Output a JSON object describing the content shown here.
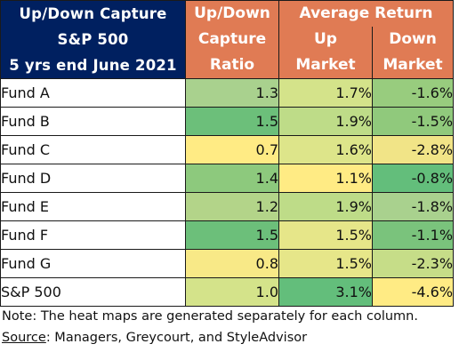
{
  "header": {
    "title_lines": [
      "Up/Down Capture",
      "S&P 500",
      "5 yrs end June 2021"
    ],
    "ratio_lines": [
      "Up/Down",
      "Capture",
      "Ratio"
    ],
    "avg_return": "Average Return",
    "up_lines": [
      "Up",
      "Market"
    ],
    "down_lines": [
      "Down",
      "Market"
    ]
  },
  "chart_data": {
    "type": "table",
    "columns": [
      "Up/Down Capture Ratio",
      "Average Return Up Market",
      "Average Return Down Market"
    ],
    "rows": [
      {
        "name": "Fund A",
        "ratio": "1.3",
        "up": "1.7%",
        "down": "-1.6%",
        "colors": [
          "#a9d18e",
          "#d4e38a",
          "#98cc7e"
        ]
      },
      {
        "name": "Fund B",
        "ratio": "1.5",
        "up": "1.9%",
        "down": "-1.5%",
        "colors": [
          "#6cbf7a",
          "#bedc88",
          "#90c97c"
        ]
      },
      {
        "name": "Fund C",
        "ratio": "0.7",
        "up": "1.6%",
        "down": "-2.8%",
        "colors": [
          "#ffeb84",
          "#dde58a",
          "#f1e487"
        ]
      },
      {
        "name": "Fund D",
        "ratio": "1.4",
        "up": "1.1%",
        "down": "-0.8%",
        "colors": [
          "#8dc97d",
          "#ffeb84",
          "#63be7b"
        ]
      },
      {
        "name": "Fund E",
        "ratio": "1.2",
        "up": "1.9%",
        "down": "-1.8%",
        "colors": [
          "#b3d489",
          "#bedc88",
          "#a9d18e"
        ]
      },
      {
        "name": "Fund F",
        "ratio": "1.5",
        "up": "1.5%",
        "down": "-1.1%",
        "colors": [
          "#6cbf7a",
          "#e6e689",
          "#7ac37c"
        ]
      },
      {
        "name": "Fund G",
        "ratio": "0.8",
        "up": "1.5%",
        "down": "-2.3%",
        "colors": [
          "#f8e987",
          "#e6e689",
          "#c6dd88"
        ]
      },
      {
        "name": "S&P 500",
        "ratio": "1.0",
        "up": "3.1%",
        "down": "-4.6%",
        "colors": [
          "#d4e38a",
          "#63be7b",
          "#ffeb84"
        ]
      }
    ]
  },
  "notes": {
    "note": "Note: The heat maps are generated separately for each column.",
    "source_label": "Source",
    "source_text": ": Managers, Greycourt, and StyleAdvisor"
  }
}
